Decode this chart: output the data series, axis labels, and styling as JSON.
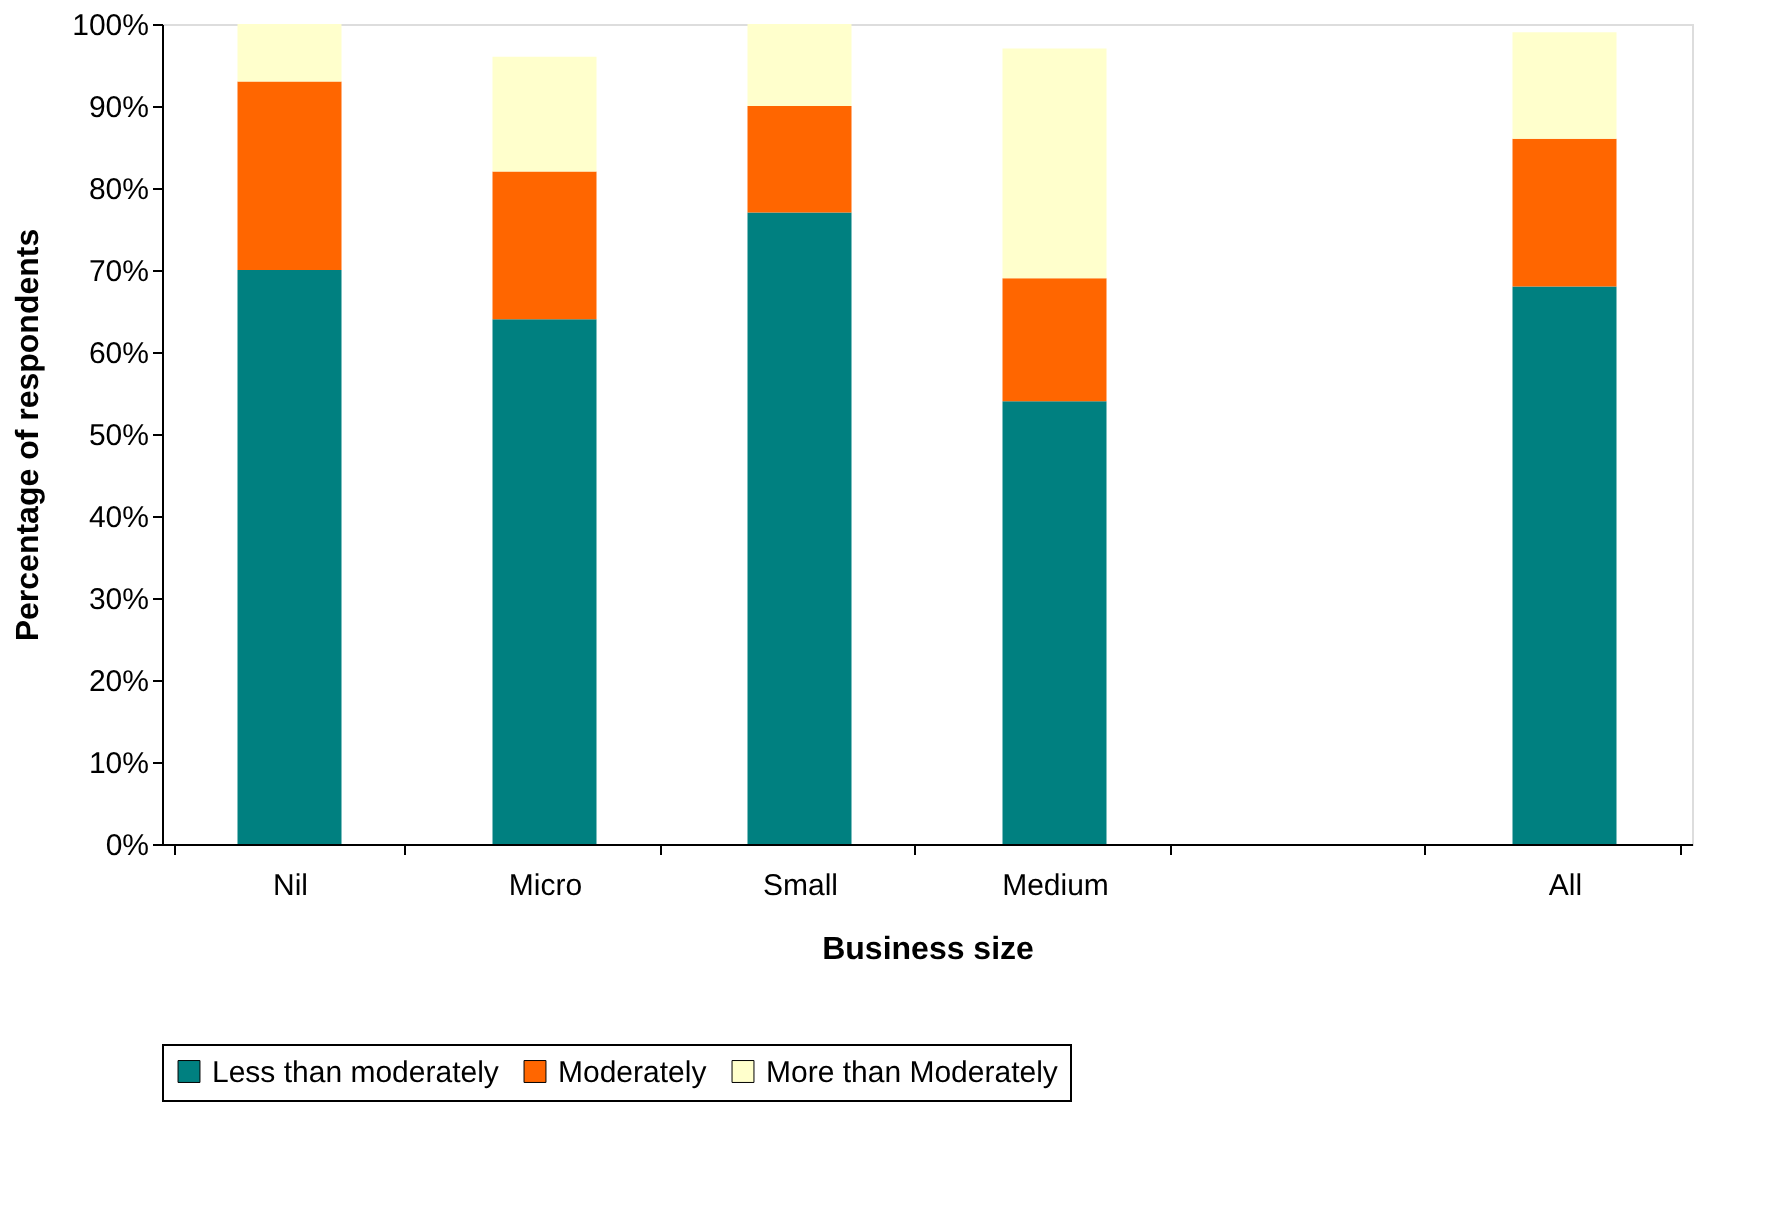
{
  "chart_data": {
    "type": "bar",
    "stacked": true,
    "xlabel": "Business size",
    "ylabel": "Percentage of respondents",
    "categories": [
      "Nil",
      "Micro",
      "Small",
      "Medium",
      null,
      "All"
    ],
    "series": [
      {
        "name": "Less than moderately",
        "color": "#008080",
        "values": [
          70,
          64,
          77,
          54,
          null,
          68
        ]
      },
      {
        "name": "Moderately",
        "color": "#ff6600",
        "values": [
          23,
          18,
          13,
          15,
          null,
          18
        ]
      },
      {
        "name": "More than Moderately",
        "color": "#ffffcc",
        "values": [
          7,
          14,
          10,
          28,
          null,
          13
        ]
      }
    ],
    "ylim": [
      0,
      100
    ],
    "yticks": [
      {
        "value": 0,
        "label": "0%"
      },
      {
        "value": 10,
        "label": "10%"
      },
      {
        "value": 20,
        "label": "20%"
      },
      {
        "value": 30,
        "label": "30%"
      },
      {
        "value": 40,
        "label": "40%"
      },
      {
        "value": 50,
        "label": "50%"
      },
      {
        "value": 60,
        "label": "60%"
      },
      {
        "value": 70,
        "label": "70%"
      },
      {
        "value": 80,
        "label": "80%"
      },
      {
        "value": 90,
        "label": "90%"
      },
      {
        "value": 100,
        "label": "100%"
      }
    ],
    "grid": false,
    "legend": "bottom"
  }
}
